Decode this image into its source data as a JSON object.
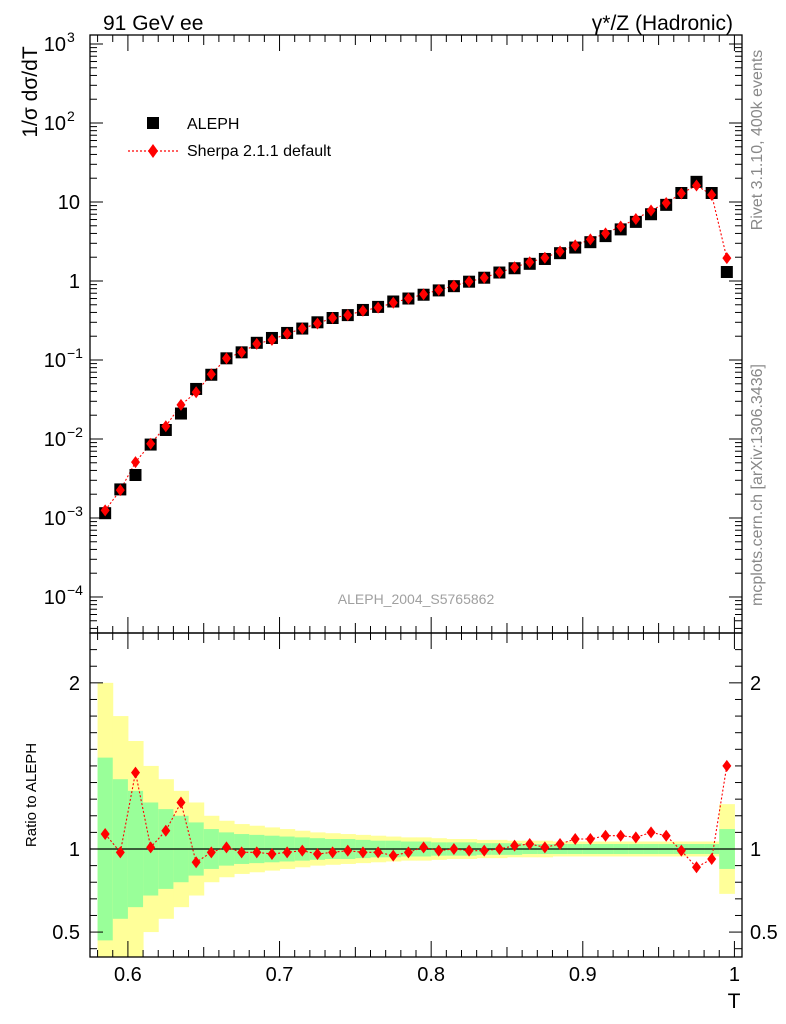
{
  "header": {
    "left": "91 GeV ee",
    "right": "γ*/Z (Hadronic)"
  },
  "side_text": {
    "top": "Rivet 3.1.10,  400k events",
    "bottom": "mcplots.cern.ch [arXiv:1306.3436]"
  },
  "watermark": "ALEPH_2004_S5765862",
  "colors": {
    "data": "#000000",
    "mc": "#ff0000",
    "band_inner": "#99ff99",
    "band_outer": "#ffff99",
    "frame": "#000000"
  },
  "chart_data": [
    {
      "type": "scatter",
      "ylabel": "1/σ  dσ/dT",
      "y_scale": "log",
      "xlim": [
        0.575,
        1.005
      ],
      "ylim": [
        3.5e-05,
        1300
      ],
      "y_ticks": [
        {
          "value": 0.0001,
          "base": "10",
          "exp": "−4"
        },
        {
          "value": 0.001,
          "base": "10",
          "exp": "−3"
        },
        {
          "value": 0.01,
          "base": "10",
          "exp": "−2"
        },
        {
          "value": 0.1,
          "base": "10",
          "exp": "−1"
        },
        {
          "value": 1,
          "base": "1",
          "exp": ""
        },
        {
          "value": 10,
          "base": "10",
          "exp": ""
        },
        {
          "value": 100,
          "base": "10",
          "exp": "2"
        },
        {
          "value": 1000,
          "base": "10",
          "exp": "3"
        }
      ],
      "legend_position": "top-left",
      "x": [
        0.585,
        0.595,
        0.605,
        0.615,
        0.625,
        0.635,
        0.645,
        0.655,
        0.665,
        0.675,
        0.685,
        0.695,
        0.705,
        0.715,
        0.725,
        0.735,
        0.745,
        0.755,
        0.765,
        0.775,
        0.785,
        0.795,
        0.805,
        0.815,
        0.825,
        0.835,
        0.845,
        0.855,
        0.865,
        0.875,
        0.885,
        0.895,
        0.905,
        0.915,
        0.925,
        0.935,
        0.945,
        0.955,
        0.965,
        0.975,
        0.985,
        0.995
      ],
      "series": [
        {
          "name": "ALEPH",
          "marker": "square",
          "values": [
            0.00115,
            0.0023,
            0.0035,
            0.0085,
            0.013,
            0.021,
            0.043,
            0.065,
            0.105,
            0.125,
            0.165,
            0.19,
            0.22,
            0.25,
            0.3,
            0.34,
            0.37,
            0.43,
            0.47,
            0.55,
            0.6,
            0.67,
            0.76,
            0.86,
            0.98,
            1.1,
            1.28,
            1.45,
            1.65,
            1.9,
            2.25,
            2.65,
            3.1,
            3.7,
            4.5,
            5.6,
            7.0,
            9.2,
            13.0,
            18.0,
            13.0,
            1.3
          ]
        },
        {
          "name": "Sherpa 2.1.1 default",
          "marker": "diamond",
          "line": "dotted",
          "values": [
            0.00125,
            0.00225,
            0.0051,
            0.0087,
            0.0145,
            0.027,
            0.039,
            0.066,
            0.105,
            0.125,
            0.16,
            0.18,
            0.215,
            0.25,
            0.29,
            0.34,
            0.37,
            0.42,
            0.46,
            0.53,
            0.6,
            0.68,
            0.77,
            0.87,
            0.98,
            1.1,
            1.28,
            1.49,
            1.73,
            1.97,
            2.36,
            2.82,
            3.36,
            4.0,
            4.9,
            6.1,
            7.8,
            9.7,
            12.8,
            16.2,
            12.3,
            1.95
          ]
        }
      ]
    },
    {
      "type": "scatter",
      "ylabel": "Ratio to ALEPH",
      "xlabel": "T",
      "xlim": [
        0.575,
        1.005
      ],
      "ylim": [
        0.35,
        2.3
      ],
      "x_ticks": [
        0.6,
        0.7,
        0.8,
        0.9,
        1
      ],
      "x_tick_labels": [
        "0.6",
        "0.7",
        "0.8",
        "0.9",
        "1"
      ],
      "y_ticks": [
        0.5,
        1,
        2
      ],
      "y_tick_labels": [
        "0.5",
        "1",
        "2"
      ],
      "reference_line": 1,
      "x": [
        0.585,
        0.595,
        0.605,
        0.615,
        0.625,
        0.635,
        0.645,
        0.655,
        0.665,
        0.675,
        0.685,
        0.695,
        0.705,
        0.715,
        0.725,
        0.735,
        0.745,
        0.755,
        0.765,
        0.775,
        0.785,
        0.795,
        0.805,
        0.815,
        0.825,
        0.835,
        0.845,
        0.855,
        0.865,
        0.875,
        0.885,
        0.895,
        0.905,
        0.915,
        0.925,
        0.935,
        0.945,
        0.955,
        0.965,
        0.975,
        0.985,
        0.995
      ],
      "band_inner_half_width": [
        0.55,
        0.42,
        0.35,
        0.28,
        0.24,
        0.2,
        0.16,
        0.12,
        0.1,
        0.09,
        0.085,
        0.08,
        0.075,
        0.07,
        0.065,
        0.06,
        0.06,
        0.055,
        0.05,
        0.05,
        0.045,
        0.045,
        0.04,
        0.04,
        0.04,
        0.035,
        0.035,
        0.035,
        0.03,
        0.03,
        0.03,
        0.03,
        0.03,
        0.03,
        0.03,
        0.03,
        0.03,
        0.03,
        0.03,
        0.03,
        0.03,
        0.12
      ],
      "band_outer_half_width": [
        1.0,
        0.8,
        0.65,
        0.5,
        0.42,
        0.35,
        0.28,
        0.2,
        0.17,
        0.15,
        0.14,
        0.13,
        0.12,
        0.11,
        0.1,
        0.095,
        0.09,
        0.085,
        0.08,
        0.075,
        0.07,
        0.07,
        0.065,
        0.06,
        0.06,
        0.055,
        0.055,
        0.05,
        0.05,
        0.05,
        0.045,
        0.045,
        0.045,
        0.045,
        0.045,
        0.045,
        0.045,
        0.045,
        0.045,
        0.045,
        0.045,
        0.27
      ],
      "series": [
        {
          "name": "Sherpa 2.1.1 default",
          "marker": "diamond",
          "values": [
            1.09,
            0.98,
            1.46,
            1.01,
            1.11,
            1.28,
            0.92,
            0.98,
            1.01,
            0.98,
            0.98,
            0.97,
            0.98,
            0.99,
            0.97,
            0.98,
            0.99,
            0.98,
            0.98,
            0.96,
            0.98,
            1.01,
            0.99,
            1.0,
            0.99,
            0.99,
            1.0,
            1.02,
            1.03,
            1.01,
            1.03,
            1.06,
            1.06,
            1.08,
            1.08,
            1.07,
            1.1,
            1.08,
            0.99,
            0.89,
            0.94,
            1.5
          ]
        }
      ]
    }
  ]
}
